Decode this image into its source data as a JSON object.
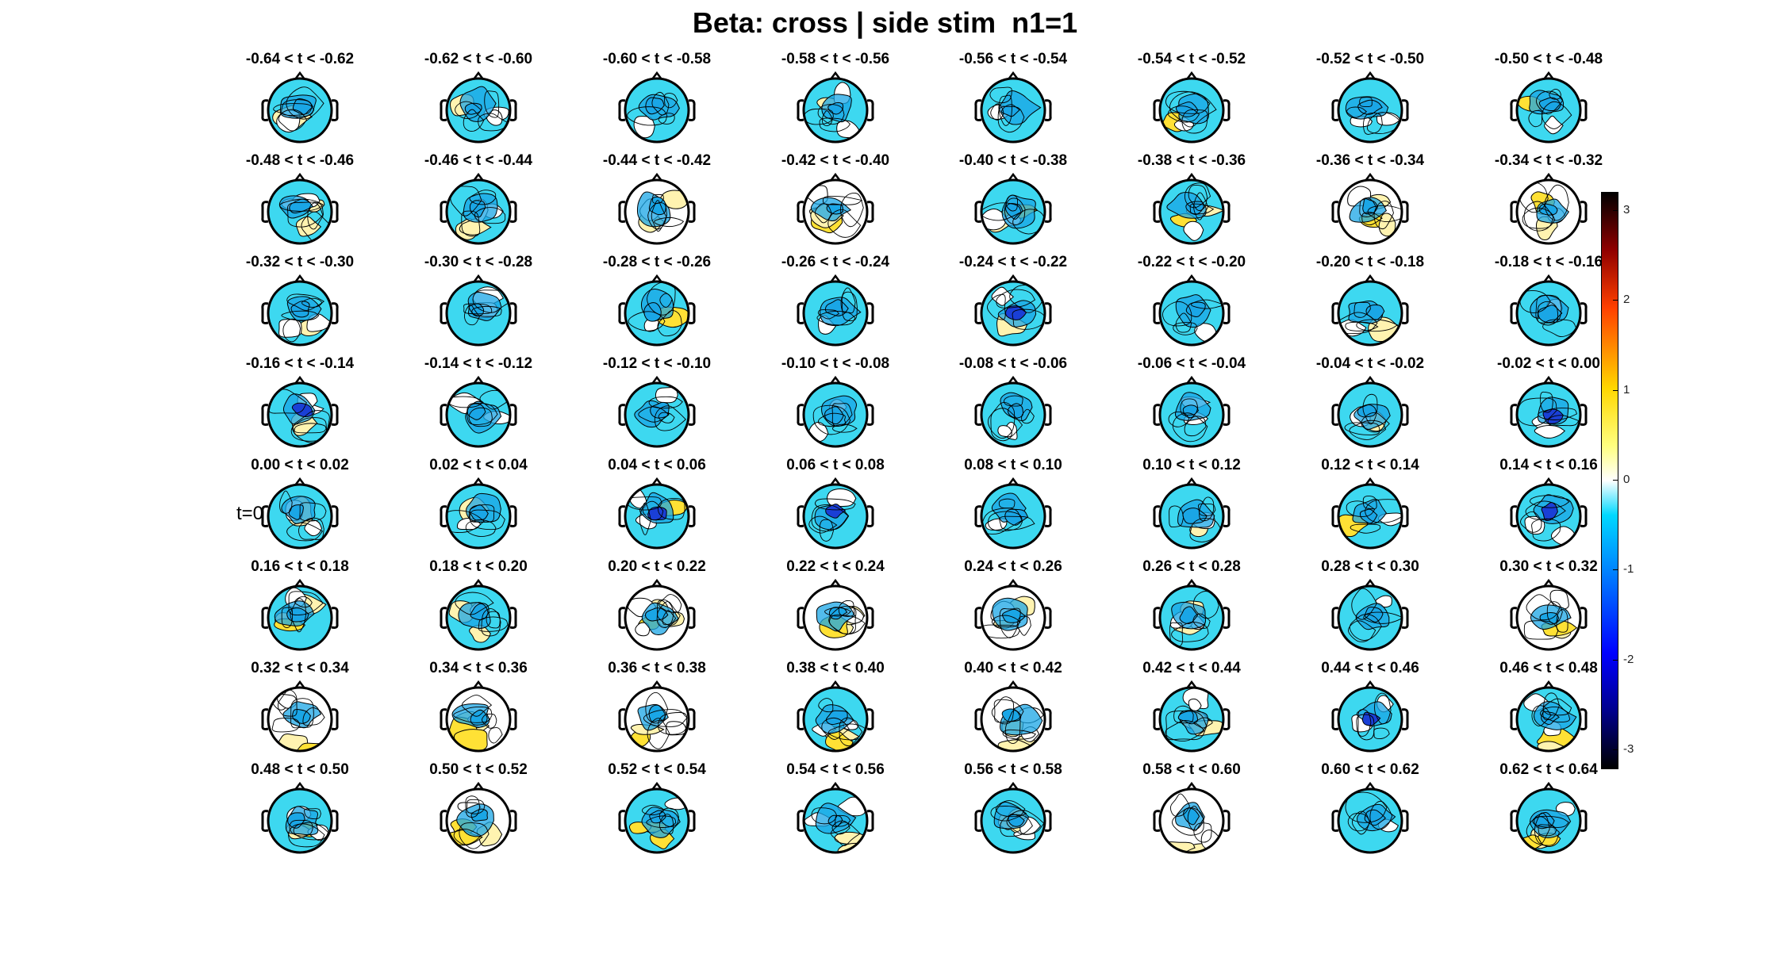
{
  "chart_data": {
    "type": "heatmap",
    "title": "Beta: cross | side stim  n1=1",
    "grid": {
      "rows": 8,
      "cols": 8
    },
    "panels": [
      "-0.64 < t < -0.62",
      "-0.62 < t < -0.60",
      "-0.60 < t < -0.58",
      "-0.58 < t < -0.56",
      "-0.56 < t < -0.54",
      "-0.54 < t < -0.52",
      "-0.52 < t < -0.50",
      "-0.50 < t < -0.48",
      "-0.48 < t < -0.46",
      "-0.46 < t < -0.44",
      "-0.44 < t < -0.42",
      "-0.42 < t < -0.40",
      "-0.40 < t < -0.38",
      "-0.38 < t < -0.36",
      "-0.36 < t < -0.34",
      "-0.34 < t < -0.32",
      "-0.32 < t < -0.30",
      "-0.30 < t < -0.28",
      "-0.28 < t < -0.26",
      "-0.26 < t < -0.24",
      "-0.24 < t < -0.22",
      "-0.22 < t < -0.20",
      "-0.20 < t < -0.18",
      "-0.18 < t < -0.16",
      "-0.16 < t < -0.14",
      "-0.14 < t < -0.12",
      "-0.12 < t < -0.10",
      "-0.10 < t < -0.08",
      "-0.08 < t < -0.06",
      "-0.06 < t < -0.04",
      "-0.04 < t < -0.02",
      "-0.02 < t < 0.00",
      "0.00 < t < 0.02",
      "0.02 < t < 0.04",
      "0.04 < t < 0.06",
      "0.06 < t < 0.08",
      "0.08 < t < 0.10",
      "0.10 < t < 0.12",
      "0.12 < t < 0.14",
      "0.14 < t < 0.16",
      "0.16 < t < 0.18",
      "0.18 < t < 0.20",
      "0.20 < t < 0.22",
      "0.22 < t < 0.24",
      "0.24 < t < 0.26",
      "0.26 < t < 0.28",
      "0.28 < t < 0.30",
      "0.30 < t < 0.32",
      "0.32 < t < 0.34",
      "0.34 < t < 0.36",
      "0.36 < t < 0.38",
      "0.38 < t < 0.40",
      "0.40 < t < 0.42",
      "0.42 < t < 0.44",
      "0.44 < t < 0.46",
      "0.46 < t < 0.48",
      "0.48 < t < 0.50",
      "0.50 < t < 0.52",
      "0.52 < t < 0.54",
      "0.54 < t < 0.56",
      "0.56 < t < 0.58",
      "0.58 < t < 0.60",
      "0.60 < t < 0.62",
      "0.62 < t < 0.64"
    ],
    "marker_label": "t=0",
    "marker_panel_index": 32,
    "colorbar": {
      "range": [
        -3.2,
        3.2
      ],
      "ticks": [
        "3",
        "2",
        "1",
        "0",
        "-1",
        "-2",
        "-3"
      ],
      "tick_values": [
        3,
        2,
        1,
        0,
        -1,
        -2,
        -3
      ],
      "colormap": "jet-like with white at 0"
    },
    "colors": {
      "negative_light": "#3dd8f0",
      "negative_mid": "#1aa6e6",
      "negative_strong": "#1a3fd6",
      "neutral": "#ffffff",
      "positive_light": "#fff3b0",
      "positive_mid": "#ffe135"
    }
  }
}
